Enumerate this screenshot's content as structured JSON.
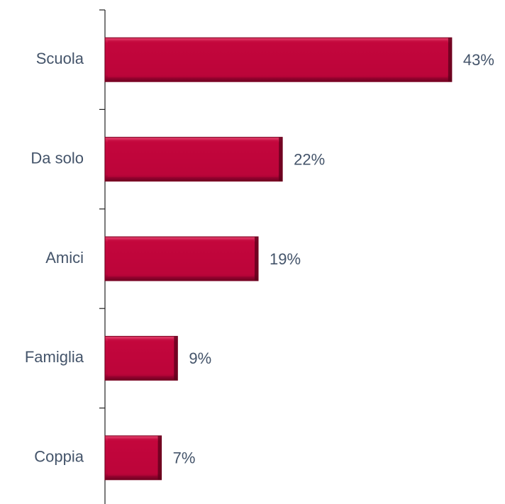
{
  "chart_data": {
    "type": "bar",
    "orientation": "horizontal",
    "categories": [
      "Scuola",
      "Da solo",
      "Amici",
      "Famiglia",
      "Coppia"
    ],
    "values": [
      43,
      22,
      19,
      9,
      7
    ],
    "value_labels": [
      "43%",
      "22%",
      "19%",
      "9%",
      "7%"
    ],
    "color": "#c0063b"
  }
}
